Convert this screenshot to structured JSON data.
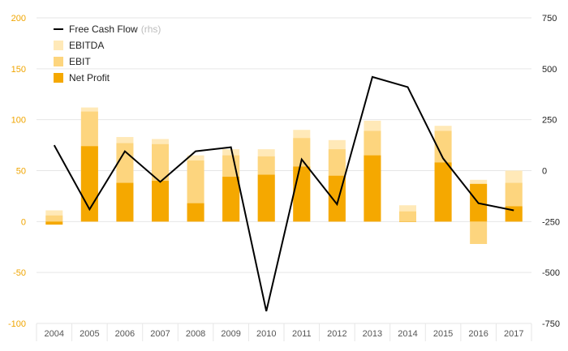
{
  "colors": {
    "ebitda": "#ffe9b8",
    "ebit": "#fdd57e",
    "net_profit": "#f5a800",
    "fcf_line": "#000000",
    "left_tick": "#f0a500",
    "right_tick": "#222222",
    "grid": "#e6e6e6"
  },
  "legend": [
    {
      "key": "fcf",
      "label": "Free Cash Flow",
      "suffix": "(rhs)",
      "kind": "line"
    },
    {
      "key": "ebitda",
      "label": "EBITDA",
      "kind": "box"
    },
    {
      "key": "ebit",
      "label": "EBIT",
      "kind": "box"
    },
    {
      "key": "net_profit",
      "label": "Net Profit",
      "kind": "box"
    }
  ],
  "chart_data": {
    "type": "bar",
    "categories": [
      "2004",
      "2005",
      "2006",
      "2007",
      "2008",
      "2009",
      "2010",
      "2011",
      "2012",
      "2013",
      "2014",
      "2015",
      "2016",
      "2017"
    ],
    "series": [
      {
        "name": "EBITDA",
        "key": "ebitda",
        "axis": "left",
        "values": [
          11,
          112,
          83,
          81,
          65,
          71,
          71,
          90,
          80,
          99,
          16,
          94,
          41,
          50
        ]
      },
      {
        "name": "EBIT",
        "key": "ebit",
        "axis": "left",
        "values": [
          6,
          108,
          77,
          76,
          60,
          65,
          64,
          82,
          71,
          89,
          10,
          89,
          -22,
          38
        ]
      },
      {
        "name": "Net Profit",
        "key": "net_profit",
        "axis": "left",
        "values": [
          -3,
          74,
          38,
          40,
          18,
          44,
          46,
          54,
          45,
          65,
          0,
          58,
          37,
          15
        ]
      },
      {
        "name": "Free Cash Flow",
        "key": "fcf",
        "axis": "right",
        "type": "line",
        "values": [
          125,
          -190,
          95,
          -55,
          95,
          115,
          -690,
          55,
          -165,
          460,
          410,
          60,
          -160,
          -195
        ]
      }
    ],
    "y_left": {
      "range": [
        -100,
        200
      ],
      "ticks": [
        "200",
        "150",
        "100",
        "50",
        "0",
        "-50",
        "-100"
      ],
      "tick_values": [
        200,
        150,
        100,
        50,
        0,
        -50,
        -100
      ]
    },
    "y_right": {
      "range": [
        -750,
        750
      ],
      "ticks": [
        "750",
        "500",
        "250",
        "0",
        "-250",
        "-500",
        "-750"
      ],
      "tick_values": [
        750,
        500,
        250,
        0,
        -250,
        -500,
        -750
      ]
    },
    "grid": true,
    "legend_position": "top-left"
  }
}
